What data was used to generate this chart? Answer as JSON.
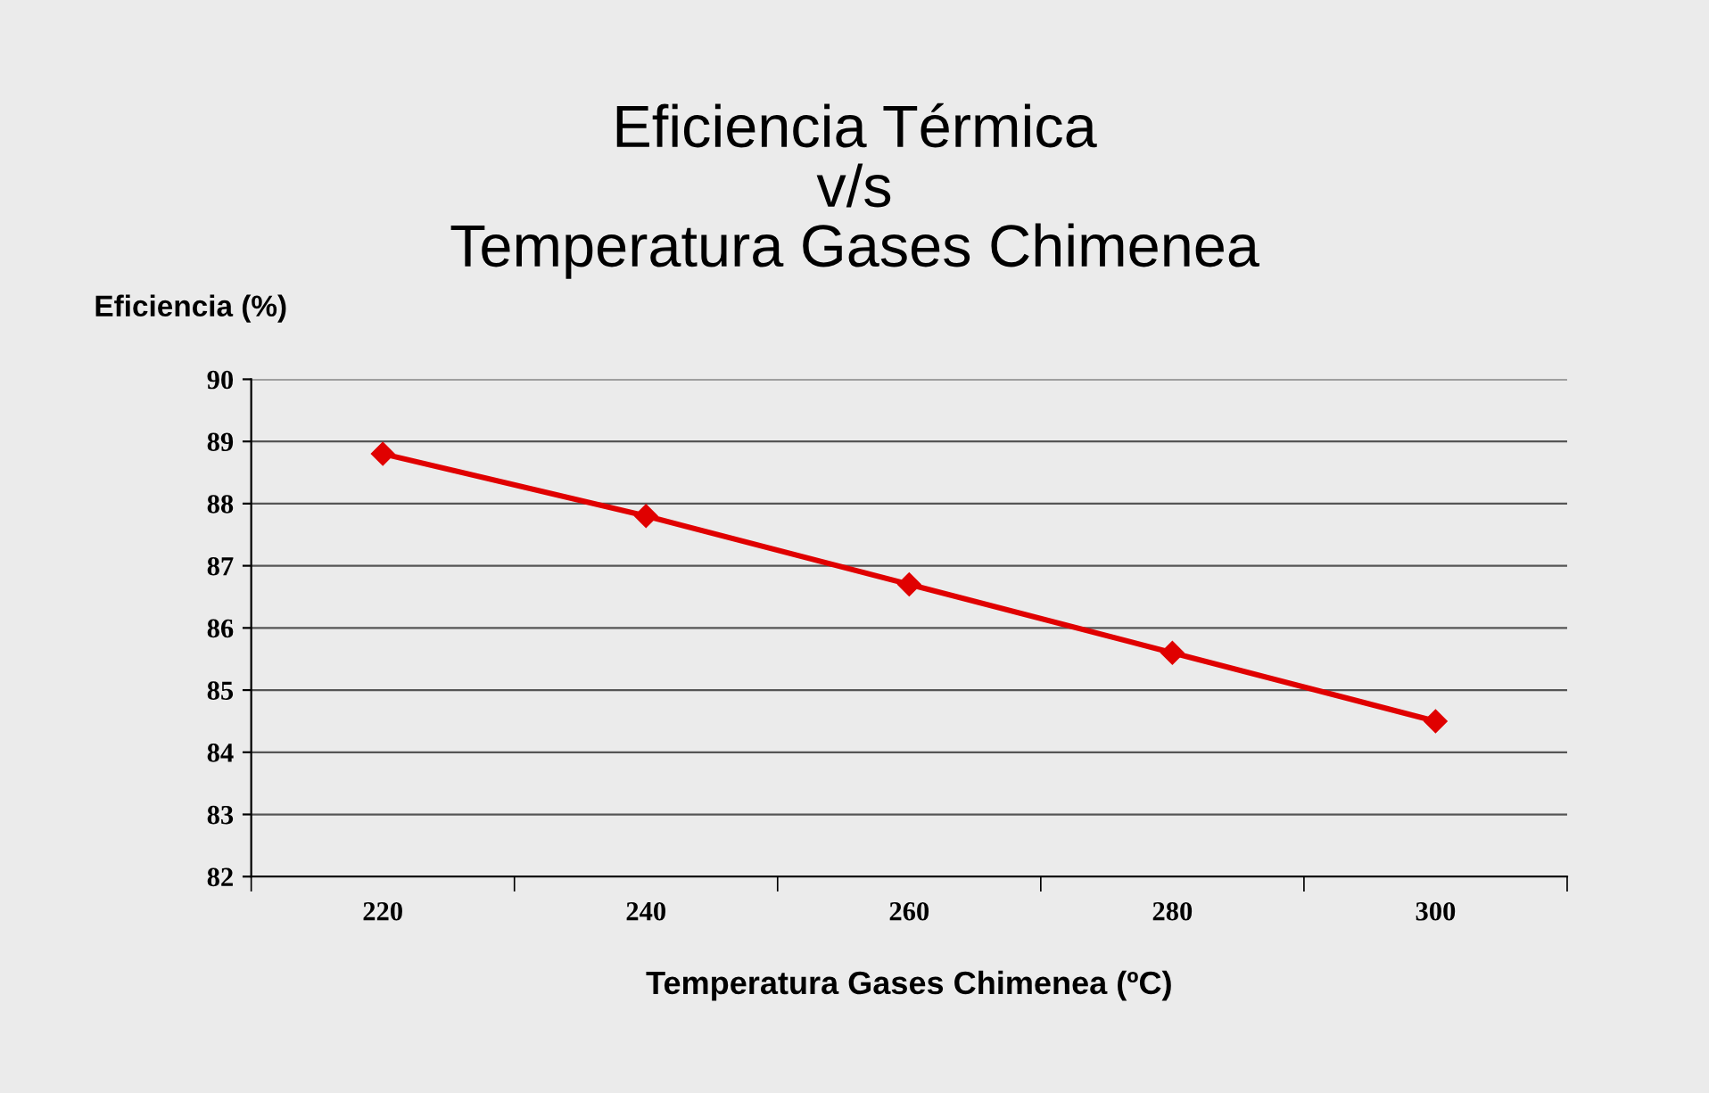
{
  "chart_data": {
    "type": "line",
    "title": "Eficiencia Térmica\nv/s\nTemperatura Gases Chimenea",
    "xlabel": "Temperatura Gases Chimenea (ºC)",
    "ylabel": "Eficiencia (%)",
    "categories": [
      "220",
      "240",
      "260",
      "280",
      "300"
    ],
    "series": [
      {
        "color": "#e00000",
        "values": [
          88.8,
          87.8,
          86.7,
          85.6,
          84.5
        ]
      }
    ],
    "ylim": [
      82,
      90
    ],
    "yticks": [
      82,
      83,
      84,
      85,
      86,
      87,
      88,
      89,
      90
    ],
    "grid": "y",
    "marker": "diamond",
    "line_style": "solid",
    "legend": false
  }
}
